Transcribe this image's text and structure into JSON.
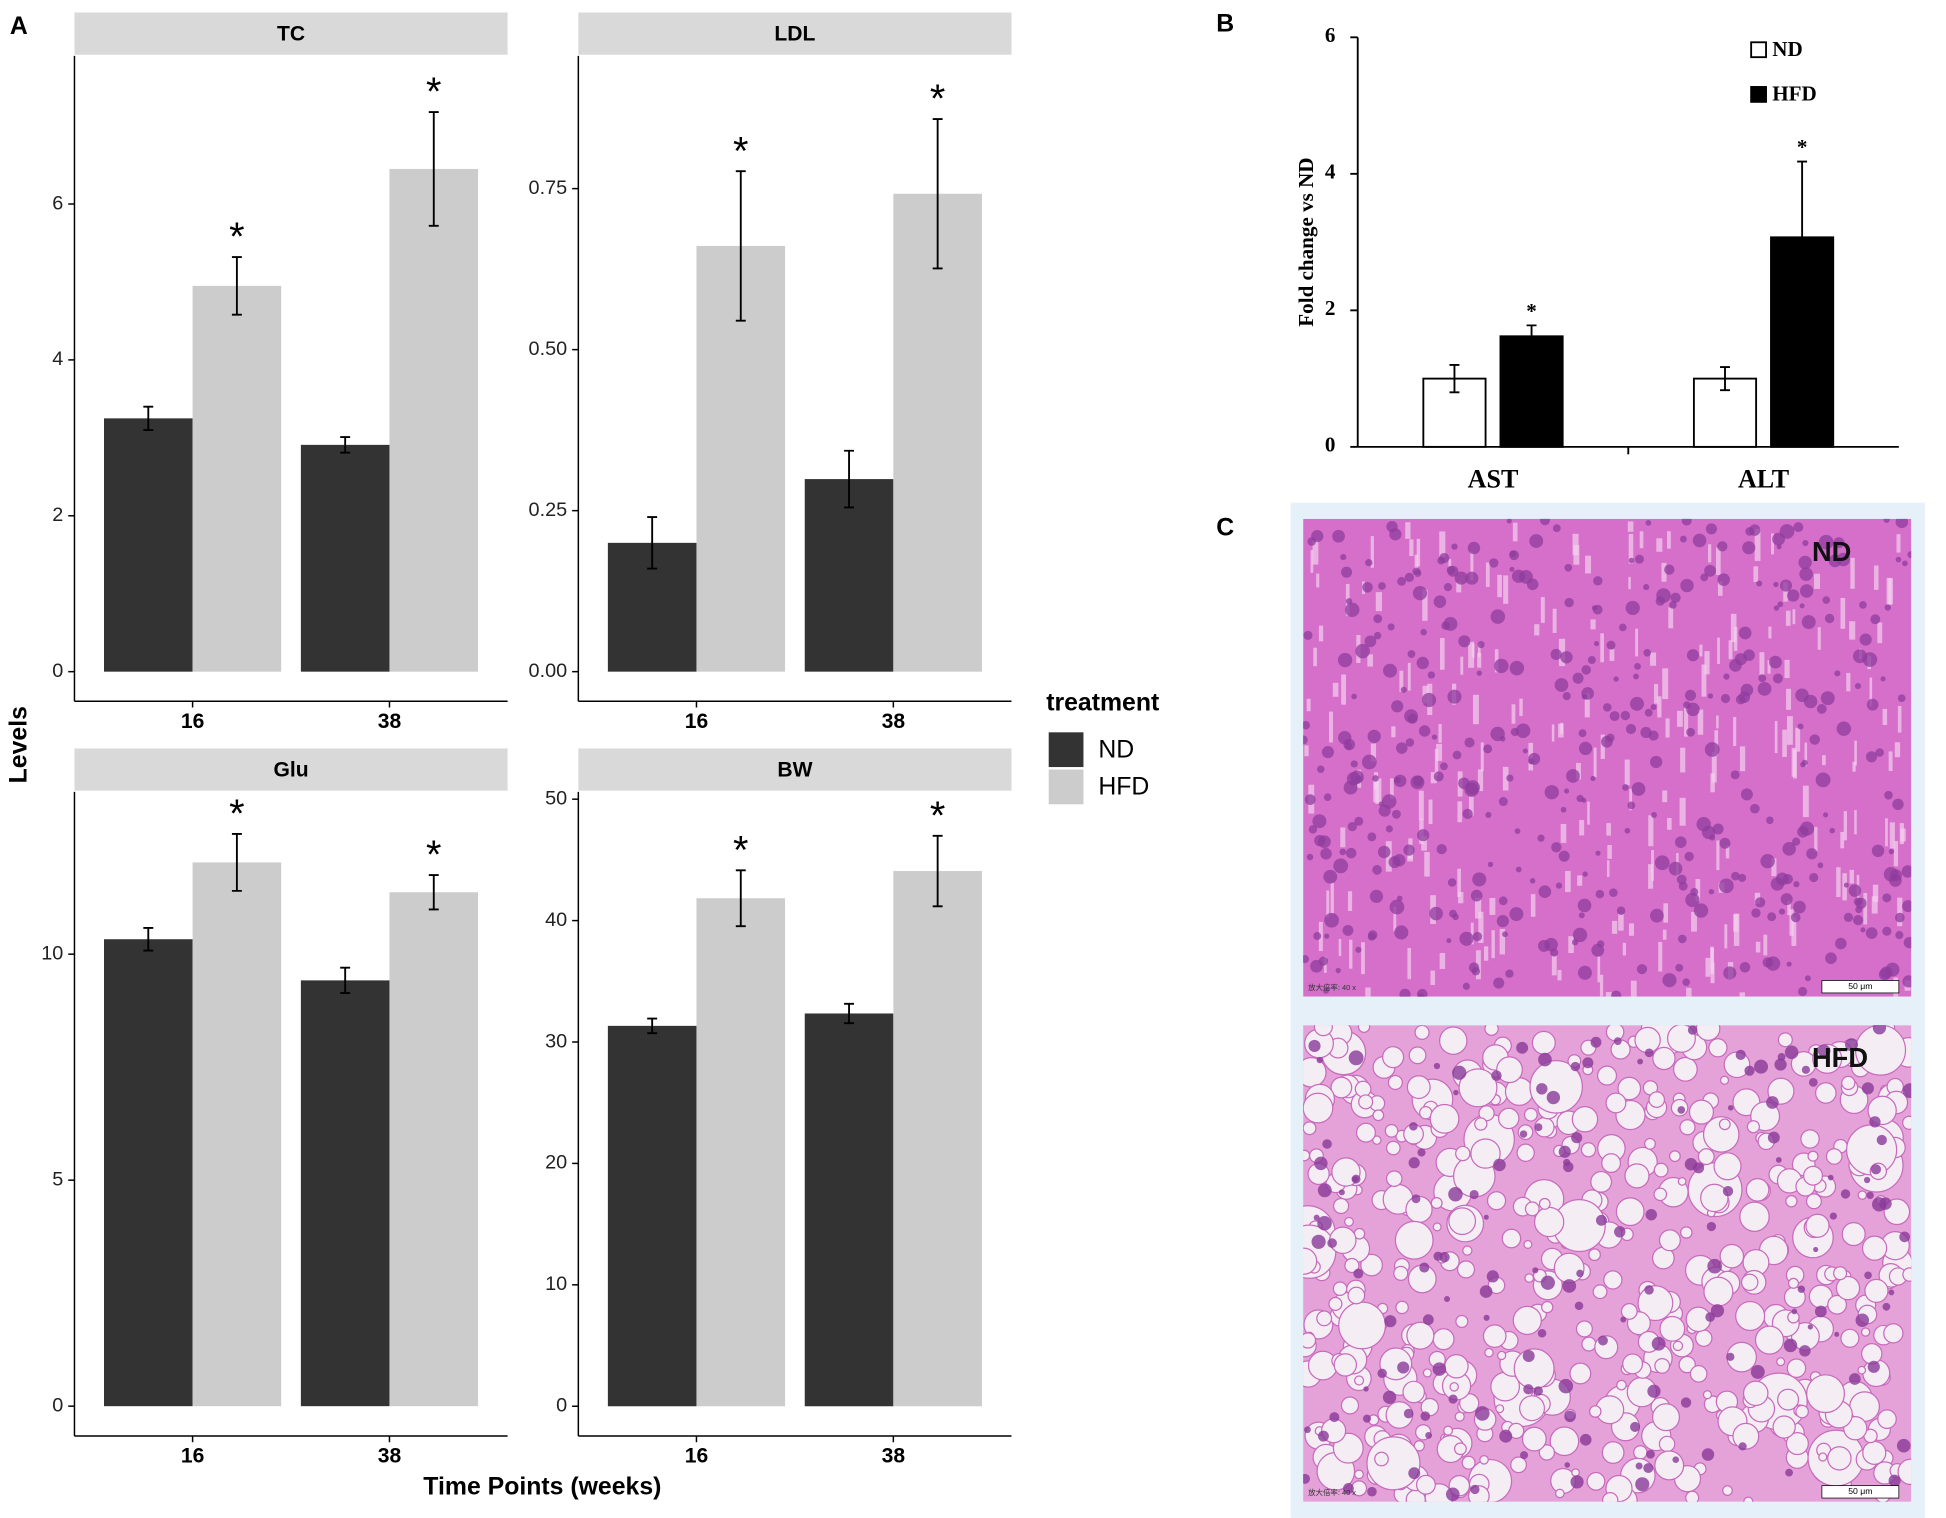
{
  "panel_labels": [
    "A",
    "B",
    "C"
  ],
  "chart_data": [
    {
      "type": "facet_bar",
      "ylabel": "Levels",
      "xlabel": "Time Points (weeks)",
      "legend_title": "treatment",
      "facets": [
        {
          "title": "TC",
          "categories": [
            "16",
            "38"
          ],
          "ylim": [
            -0.38,
            7.9
          ],
          "yticks": [
            0,
            2,
            4,
            6
          ],
          "series": [
            {
              "name": "ND",
              "color": "#333333",
              "values": [
                3.25,
                2.91
              ],
              "errors": [
                0.15,
                0.1
              ]
            },
            {
              "name": "HFD",
              "color": "#cccccc",
              "values": [
                4.95,
                6.45
              ],
              "errors": [
                0.37,
                0.73
              ],
              "significance": [
                "*",
                "*"
              ]
            }
          ]
        },
        {
          "title": "LDL",
          "categories": [
            "16",
            "38"
          ],
          "ylim": [
            -0.046,
            0.956
          ],
          "yticks": [
            {
              "value": 0,
              "label": "0.00"
            },
            0.25,
            {
              "value": 0.5,
              "label": "0.50"
            },
            0.75
          ],
          "series": [
            {
              "name": "ND",
              "color": "#333333",
              "values": [
                0.2,
                0.299
              ],
              "errors": [
                0.04,
                0.044
              ]
            },
            {
              "name": "HFD",
              "color": "#cccccc",
              "values": [
                0.661,
                0.742
              ],
              "errors": [
                0.116,
                0.116
              ],
              "significance": [
                "*",
                "*"
              ]
            }
          ]
        },
        {
          "title": "Glu",
          "categories": [
            "16",
            "38"
          ],
          "ylim": [
            -0.66,
            13.59
          ],
          "yticks": [
            0,
            5,
            10
          ],
          "series": [
            {
              "name": "ND",
              "color": "#333333",
              "values": [
                10.33,
                9.42
              ],
              "errors": [
                0.25,
                0.28
              ]
            },
            {
              "name": "HFD",
              "color": "#cccccc",
              "values": [
                12.03,
                11.37
              ],
              "errors": [
                0.63,
                0.38
              ],
              "significance": [
                "*",
                "*"
              ]
            }
          ]
        },
        {
          "title": "BW",
          "categories": [
            "16",
            "38"
          ],
          "ylim": [
            -2.45,
            50.6
          ],
          "yticks": [
            0,
            10,
            20,
            30,
            40,
            50
          ],
          "series": [
            {
              "name": "ND",
              "color": "#333333",
              "values": [
                31.33,
                32.35
              ],
              "errors": [
                0.6,
                0.8
              ]
            },
            {
              "name": "HFD",
              "color": "#cccccc",
              "values": [
                41.84,
                44.08
              ],
              "errors": [
                2.3,
                2.9
              ],
              "significance": [
                "*",
                "*"
              ]
            }
          ]
        }
      ]
    },
    {
      "type": "bar",
      "ylabel": "Fold change vs ND",
      "categories": [
        "AST",
        "ALT"
      ],
      "ylim": [
        0,
        6
      ],
      "yticks": [
        0,
        2,
        4,
        6
      ],
      "series": [
        {
          "name": "ND",
          "color": "#ffffff",
          "values": [
            1.0,
            1.0
          ],
          "errors": [
            0.2,
            0.17
          ]
        },
        {
          "name": "HFD",
          "color": "#000000",
          "values": [
            1.62,
            3.07
          ],
          "errors": [
            0.16,
            1.11
          ],
          "significance": [
            "*",
            "*"
          ]
        }
      ]
    }
  ],
  "images": [
    {
      "label": "ND",
      "scale_bar": "50 μm",
      "magnification": "放大倍率: 40 x"
    },
    {
      "label": "HFD",
      "scale_bar": "50 μm",
      "magnification": "放大倍率: 40 x"
    }
  ]
}
